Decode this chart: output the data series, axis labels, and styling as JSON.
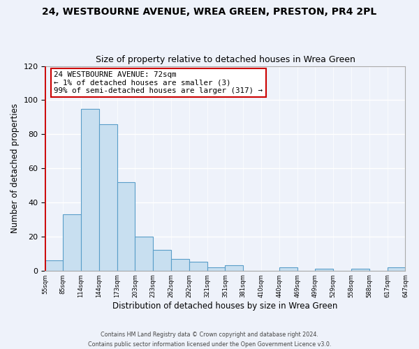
{
  "title": "24, WESTBOURNE AVENUE, WREA GREEN, PRESTON, PR4 2PL",
  "subtitle": "Size of property relative to detached houses in Wrea Green",
  "xlabel": "Distribution of detached houses by size in Wrea Green",
  "ylabel": "Number of detached properties",
  "bar_values": [
    6,
    33,
    95,
    86,
    52,
    20,
    12,
    7,
    5,
    2,
    3,
    0,
    0,
    2,
    0,
    1,
    0,
    1,
    0,
    2
  ],
  "bar_labels": [
    "55sqm",
    "85sqm",
    "114sqm",
    "144sqm",
    "173sqm",
    "203sqm",
    "233sqm",
    "262sqm",
    "292sqm",
    "321sqm",
    "351sqm",
    "381sqm",
    "410sqm",
    "440sqm",
    "469sqm",
    "499sqm",
    "529sqm",
    "558sqm",
    "588sqm",
    "617sqm",
    "647sqm"
  ],
  "bar_color": "#c8dff0",
  "bar_edge_color": "#5a9ec9",
  "highlight_color": "#cc0000",
  "annotation_title": "24 WESTBOURNE AVENUE: 72sqm",
  "annotation_line1": "← 1% of detached houses are smaller (3)",
  "annotation_line2": "99% of semi-detached houses are larger (317) →",
  "annotation_box_color": "#ffffff",
  "annotation_box_edge": "#cc0000",
  "ylim": [
    0,
    120
  ],
  "yticks": [
    0,
    20,
    40,
    60,
    80,
    100,
    120
  ],
  "footer1": "Contains HM Land Registry data © Crown copyright and database right 2024.",
  "footer2": "Contains public sector information licensed under the Open Government Licence v3.0.",
  "background_color": "#eef2fa"
}
